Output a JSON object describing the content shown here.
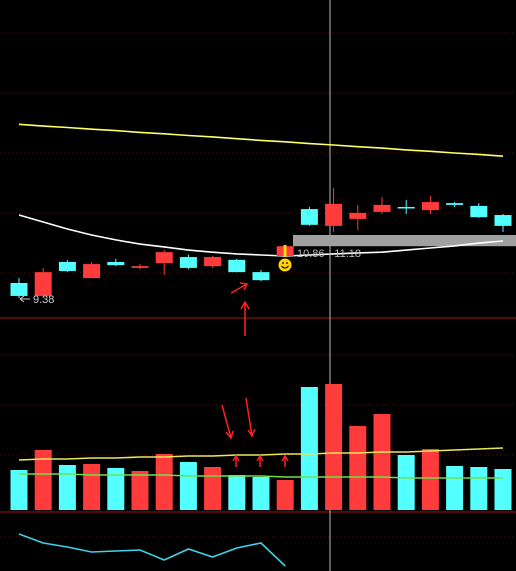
{
  "chart_data": [
    {
      "type": "candlestick",
      "open": [
        9.81,
        9.44,
        10.41,
        9.95,
        10.41,
        10.24,
        10.38,
        10.55,
        10.29,
        10.47,
        10.12,
        10.58,
        11.92,
        11.44,
        11.64,
        11.84,
        11.98,
        11.89,
        12.09,
        12.01,
        11.75
      ],
      "high": [
        9.95,
        10.24,
        10.47,
        10.41,
        10.5,
        10.35,
        10.75,
        10.62,
        10.58,
        10.5,
        10.18,
        10.89,
        11.98,
        12.52,
        12.04,
        12.27,
        12.18,
        12.29,
        12.12,
        12.09,
        11.78
      ],
      "low": [
        9.38,
        9.38,
        10.12,
        9.95,
        10.29,
        10.2,
        10.04,
        10.2,
        10.24,
        10.12,
        9.86,
        10.58,
        11.44,
        11.27,
        11.32,
        11.78,
        11.78,
        11.78,
        11.98,
        11.66,
        11.27
      ],
      "close": [
        9.44,
        10.12,
        10.15,
        10.35,
        10.32,
        10.29,
        10.69,
        10.24,
        10.55,
        10.12,
        9.89,
        10.86,
        11.47,
        12.07,
        11.81,
        12.04,
        11.95,
        12.12,
        12.04,
        11.69,
        11.44
      ],
      "up_color": "#ff3b3b",
      "down_color": "#54ffff",
      "ylim": [
        8.81,
        17.89
      ],
      "series": [
        {
          "color": "#ffff66",
          "values": [
            14.34,
            14.29,
            14.25,
            14.2,
            14.16,
            14.11,
            14.07,
            14.02,
            13.98,
            13.93,
            13.88,
            13.84,
            13.79,
            13.75,
            13.7,
            13.66,
            13.61,
            13.57,
            13.52,
            13.48,
            13.43
          ]
        },
        {
          "color": "#ffffff",
          "values": [
            11.75,
            11.55,
            11.35,
            11.18,
            11.04,
            10.92,
            10.84,
            10.75,
            10.69,
            10.64,
            10.61,
            10.58,
            10.61,
            10.64,
            10.67,
            10.69,
            10.75,
            10.81,
            10.87,
            10.95,
            11.01
          ]
        }
      ],
      "low_label": {
        "value": 9.38,
        "label": "9.38"
      },
      "range_band": {
        "values": [
          10.86,
          11.18
        ],
        "label": "10.86 - 11.18",
        "color": "#a0a0a0"
      }
    },
    {
      "type": "bar",
      "values": [
        40,
        60,
        45,
        46,
        42,
        39,
        56,
        48,
        43,
        35,
        33,
        30,
        123,
        126,
        84,
        96,
        55,
        61,
        44,
        43,
        41
      ],
      "ylim": [
        0,
        190
      ],
      "series": [
        {
          "color": "#e8e85a",
          "values": [
            50,
            51,
            51,
            52,
            52,
            53,
            53,
            54,
            54,
            55,
            55,
            56,
            56,
            57,
            57,
            58,
            58,
            59,
            60,
            61,
            62
          ]
        },
        {
          "color": "#6ee04a",
          "values": [
            36,
            36,
            36,
            35,
            35,
            35,
            35,
            34,
            34,
            34,
            34,
            33,
            33,
            33,
            33,
            33,
            32,
            32,
            32,
            32,
            32
          ]
        }
      ]
    },
    {
      "type": "line",
      "series": [
        {
          "color": "#3fd2e8",
          "values": [
            37,
            28,
            24,
            19,
            20,
            21,
            11,
            22,
            14,
            23,
            28,
            5,
            null,
            null,
            null,
            null,
            null,
            null,
            null,
            null,
            null
          ]
        }
      ],
      "ylim": [
        0,
        60
      ]
    }
  ]
}
